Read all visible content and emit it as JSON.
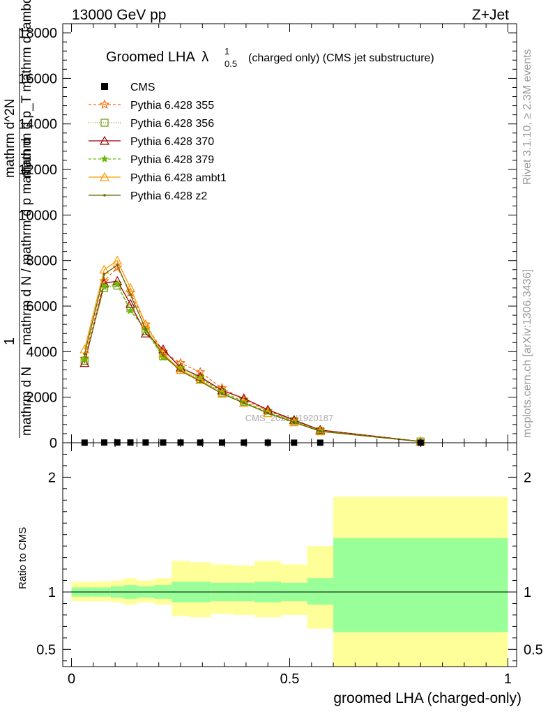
{
  "header": {
    "left": "13000 GeV pp",
    "right": "Z+Jet"
  },
  "side_labels": {
    "rivet": "Rivet 3.1.10, ≥ 2.3M events",
    "mcplots": "mcplots.cern.ch [arXiv:1306.3436]"
  },
  "watermark": "CMS_2021_I1920187",
  "chart_data": [
    {
      "type": "line",
      "panel": "main",
      "title": {
        "main": "Groomed LHA",
        "lambda": "λ",
        "sup": "1",
        "sub": "0.5",
        "rest": "(charged only) (CMS jet substructure)"
      },
      "ylabel": {
        "line1": "1",
        "line2": "mathrm d N",
        "line3": "mathrm d N / mathrm d p mathrm d",
        "line4": "mathrm d^2N",
        "line5": "mathrm d p_T mathrm d lambda"
      },
      "ylim": [
        0,
        18400
      ],
      "xlim": [
        -0.02,
        1.02
      ],
      "yticks": [
        0,
        2000,
        4000,
        6000,
        8000,
        10000,
        12000,
        14000,
        16000,
        18000
      ],
      "ytick_labels": [
        "0",
        "2000",
        "4000",
        "6000",
        "8000",
        "10000",
        "12000",
        "14000",
        "16000",
        "18000"
      ],
      "legend_position": "top-left",
      "x": [
        0.03,
        0.075,
        0.105,
        0.135,
        0.17,
        0.21,
        0.25,
        0.295,
        0.345,
        0.395,
        0.45,
        0.51,
        0.57,
        0.8
      ],
      "cms": {
        "name": "CMS",
        "color": "#000000",
        "values": [
          5,
          10,
          12,
          11,
          10,
          9,
          8,
          7,
          6,
          5,
          4,
          3,
          2,
          1
        ]
      },
      "series": [
        {
          "name": "Pythia 6.428 355",
          "color": "#ff6600",
          "marker": "star",
          "dash": "4,3",
          "values": [
            3700,
            7100,
            7700,
            6600,
            5200,
            4000,
            3500,
            3100,
            2400,
            1900,
            1400,
            1000,
            560,
            60
          ]
        },
        {
          "name": "Pythia 6.428 356",
          "color": "#669900",
          "marker": "square",
          "dash": "1,2",
          "values": [
            3600,
            6800,
            6900,
            5900,
            4900,
            3800,
            3200,
            2800,
            2200,
            1800,
            1300,
            950,
            520,
            55
          ]
        },
        {
          "name": "Pythia 6.428 370",
          "color": "#990000",
          "marker": "triangle",
          "dash": "",
          "values": [
            3500,
            7000,
            7100,
            6100,
            4800,
            4100,
            3300,
            2900,
            2300,
            1950,
            1450,
            1000,
            560,
            55
          ]
        },
        {
          "name": "Pythia 6.428 379",
          "color": "#66bb00",
          "marker": "star-small",
          "dash": "4,3",
          "values": [
            3650,
            6850,
            6950,
            5800,
            4950,
            3750,
            3300,
            2850,
            2250,
            1800,
            1350,
            950,
            530,
            55
          ]
        },
        {
          "name": "Pythia 6.428 ambt1",
          "color": "#ff9900",
          "marker": "triangle",
          "dash": "",
          "values": [
            4100,
            7600,
            8000,
            6800,
            5200,
            3900,
            3200,
            2750,
            2150,
            1750,
            1300,
            900,
            500,
            50
          ]
        },
        {
          "name": "Pythia 6.428 z2",
          "color": "#666600",
          "marker": "dot",
          "dash": "",
          "values": [
            3900,
            7400,
            7800,
            6500,
            5000,
            3850,
            3150,
            2700,
            2150,
            1750,
            1300,
            900,
            500,
            50
          ]
        }
      ]
    },
    {
      "type": "area",
      "panel": "ratio",
      "ylabel": "Ratio to CMS",
      "xlabel": "groomed LHA (charged-only)",
      "ylim": [
        0.35,
        2.3
      ],
      "xlim": [
        -0.02,
        1.02
      ],
      "yticks": [
        0.5,
        1,
        2
      ],
      "ytick_labels": [
        "0.5",
        "1",
        "2"
      ],
      "xticks": [
        0,
        0.5,
        1
      ],
      "xtick_labels": [
        "0",
        "0.5",
        "1"
      ],
      "reference_line": 1,
      "bin_edges": [
        0.0,
        0.05,
        0.09,
        0.12,
        0.15,
        0.19,
        0.23,
        0.27,
        0.32,
        0.37,
        0.42,
        0.48,
        0.54,
        0.6,
        1.0
      ],
      "band_outer": {
        "color": "#ffff99",
        "low": [
          0.92,
          0.92,
          0.91,
          0.89,
          0.91,
          0.89,
          0.79,
          0.78,
          0.81,
          0.8,
          0.78,
          0.8,
          0.68,
          0.35
        ],
        "high": [
          1.09,
          1.09,
          1.1,
          1.12,
          1.1,
          1.12,
          1.27,
          1.26,
          1.24,
          1.23,
          1.27,
          1.24,
          1.4,
          1.83
        ]
      },
      "band_inner": {
        "color": "#99ff99",
        "low": [
          0.96,
          0.96,
          0.95,
          0.94,
          0.95,
          0.94,
          0.91,
          0.91,
          0.92,
          0.92,
          0.91,
          0.92,
          0.89,
          0.65
        ],
        "high": [
          1.04,
          1.04,
          1.05,
          1.06,
          1.05,
          1.06,
          1.09,
          1.09,
          1.08,
          1.08,
          1.09,
          1.08,
          1.12,
          1.47
        ]
      }
    }
  ]
}
